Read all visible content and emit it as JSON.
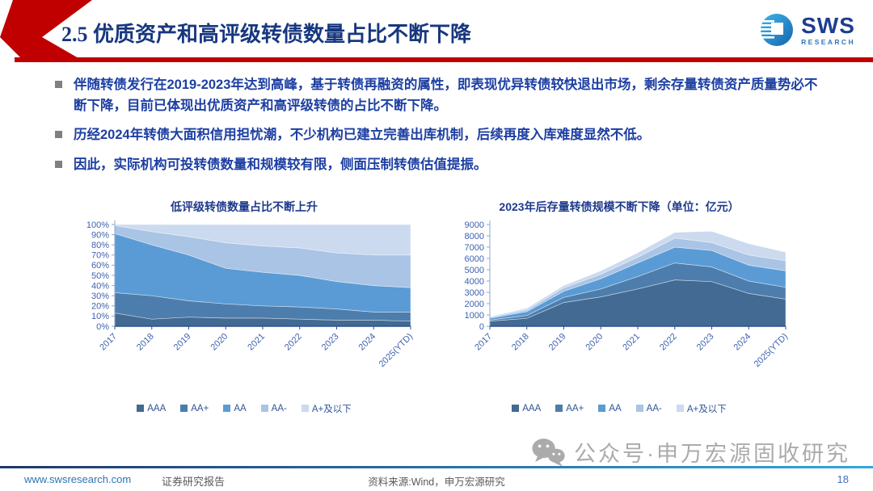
{
  "header": {
    "section_title": "2.5 优质资产和高评级转债数量占比不断下降",
    "accent_color": "#C00000"
  },
  "logo": {
    "brand": "SWS",
    "sub": "RESEARCH",
    "icon": "sws-globe-icon"
  },
  "bullets": [
    "伴随转债发行在2019-2023年达到高峰，基于转债再融资的属性，即表现优异转债较快退出市场，剩余存量转债资产质量势必不断下降，目前已体现出优质资产和高评级转债的占比不断下降。",
    "历经2024年转债大面积信用担忧潮，不少机构已建立完善出库机制，后续再度入库难度显然不低。",
    "因此，实际机构可投转债数量和规模较有限，侧面压制转债估值提振。"
  ],
  "chart_data": [
    {
      "type": "area",
      "stacked": true,
      "percent": true,
      "title": "低评级转债数量占比不断上升",
      "categories": [
        "2017",
        "2018",
        "2019",
        "2020",
        "2021",
        "2022",
        "2023",
        "2024",
        "2025(YTD)"
      ],
      "series": [
        {
          "name": "AAA",
          "values": [
            13,
            7,
            9,
            8,
            8,
            7,
            6,
            6,
            5
          ]
        },
        {
          "name": "AA+",
          "values": [
            20,
            23,
            16,
            14,
            12,
            12,
            11,
            8,
            9
          ]
        },
        {
          "name": "AA",
          "values": [
            58,
            50,
            45,
            35,
            33,
            31,
            27,
            26,
            24
          ]
        },
        {
          "name": "AA-",
          "values": [
            8,
            13,
            18,
            25,
            26,
            27,
            28,
            30,
            32
          ]
        },
        {
          "name": "A+及以下",
          "values": [
            1,
            7,
            12,
            18,
            21,
            23,
            28,
            30,
            30
          ]
        }
      ],
      "colors": [
        "#426A92",
        "#4D7DAC",
        "#5B9BD5",
        "#A9C4E4",
        "#CBDAEE"
      ],
      "ylim": [
        0,
        100
      ],
      "y_tick_step": 10,
      "y_tick_suffix": "%",
      "grid": false,
      "legend_position": "bottom"
    },
    {
      "type": "area",
      "stacked": true,
      "percent": false,
      "title": "2023年后存量转债规模不断下降（单位：亿元）",
      "categories": [
        "2017",
        "2018",
        "2019",
        "2020",
        "2021",
        "2022",
        "2023",
        "2024",
        "2025(YTD)"
      ],
      "series": [
        {
          "name": "AAA",
          "values": [
            450,
            700,
            2100,
            2600,
            3300,
            4100,
            3950,
            2900,
            2400
          ]
        },
        {
          "name": "AA+",
          "values": [
            100,
            250,
            450,
            700,
            1100,
            1500,
            1300,
            1100,
            1050
          ]
        },
        {
          "name": "AA",
          "values": [
            150,
            350,
            550,
            900,
            1200,
            1400,
            1450,
            1400,
            1450
          ]
        },
        {
          "name": "AA-",
          "values": [
            100,
            150,
            300,
            400,
            500,
            800,
            700,
            900,
            900
          ]
        },
        {
          "name": "A+及以下",
          "values": [
            50,
            150,
            200,
            300,
            400,
            500,
            1000,
            1000,
            750
          ]
        }
      ],
      "colors": [
        "#426A92",
        "#4D7DAC",
        "#5B9BD5",
        "#A9C4E4",
        "#CBDAEE"
      ],
      "ylim": [
        0,
        9000
      ],
      "y_tick_step": 1000,
      "y_tick_suffix": "",
      "grid": false,
      "legend_position": "bottom"
    }
  ],
  "watermark": {
    "icon": "wechat-icon",
    "text": "公众号·申万宏源固收研究"
  },
  "footer": {
    "website": "www.swsresearch.com",
    "report_type": "证券研究报告",
    "source": "资料来源:Wind，申万宏源研究",
    "page": "18"
  }
}
